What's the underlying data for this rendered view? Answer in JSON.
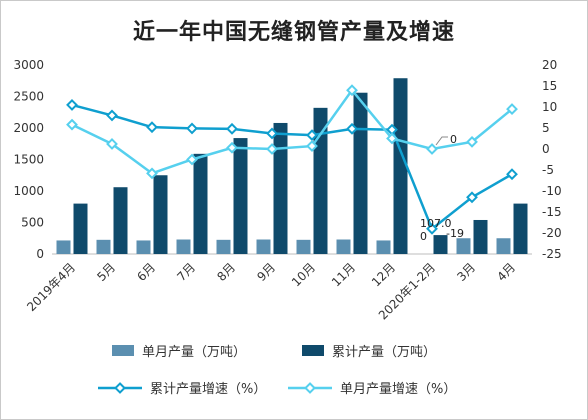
{
  "chart_data": {
    "type": "bar",
    "title": "近一年中国无缝钢管产量及增速",
    "categories": [
      "2019年4月",
      "5月",
      "6月",
      "7月",
      "8月",
      "9月",
      "10月",
      "11月",
      "12月",
      "2020年1-2月",
      "3月",
      "4月"
    ],
    "y_left": {
      "ticks": [
        "0",
        "500",
        "1000",
        "1500",
        "2000",
        "2500",
        "3000"
      ],
      "ylim": [
        0,
        3000
      ]
    },
    "y_right": {
      "ticks": [
        "-25",
        "-20",
        "-15",
        "-10",
        "-5",
        "0",
        "5",
        "10",
        "15",
        "20"
      ],
      "ylim": [
        -25,
        20
      ]
    },
    "series": [
      {
        "name": "单月产量（万吨）",
        "kind": "bar",
        "axis": "left",
        "color": "#5b8fb0",
        "values": [
          215,
          225,
          215,
          230,
          225,
          230,
          225,
          230,
          215,
          0,
          250,
          250
        ]
      },
      {
        "name": "累计产量（万吨）",
        "kind": "bar",
        "axis": "left",
        "color": "#0f4a6b",
        "values": [
          800,
          1060,
          1250,
          1590,
          1840,
          2080,
          2320,
          2560,
          2790,
          300,
          540,
          800
        ]
      },
      {
        "name": "累计产量增速（%）",
        "kind": "line",
        "axis": "right",
        "color": "#0f9fcf",
        "values": [
          10.5,
          8,
          5.2,
          4.9,
          4.8,
          3.7,
          3.3,
          4.8,
          4.6,
          -19,
          -11.5,
          -6
        ]
      },
      {
        "name": "单月产量增速（%）",
        "kind": "line",
        "axis": "right",
        "color": "#56d0ee",
        "values": [
          5.8,
          1.2,
          -5.8,
          -2.5,
          0.3,
          0,
          0.7,
          14,
          2.5,
          0,
          1.7,
          9.5
        ]
      }
    ],
    "annotations": [
      {
        "text": "0",
        "near": "单月产量增速 2020年1-2月"
      },
      {
        "text": "107.0",
        "near": "2020年1-2月"
      },
      {
        "text": "-19",
        "near": "累计产量增速 2020年1-2月"
      },
      {
        "text": "0",
        "near": "单月产量 2020年1-2月"
      }
    ],
    "grid": false,
    "legend": "bottom"
  }
}
